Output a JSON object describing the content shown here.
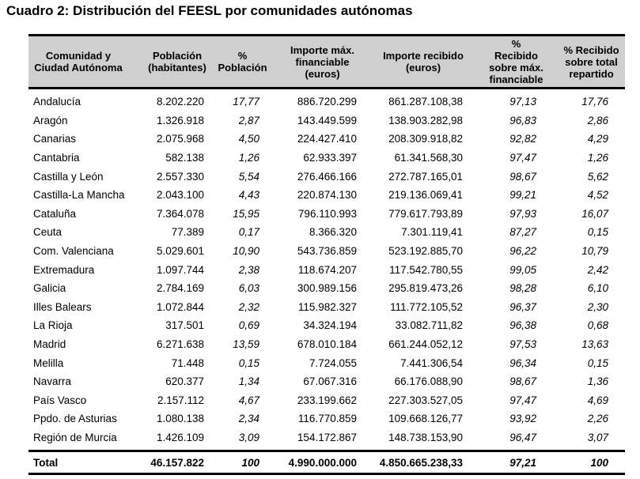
{
  "title": "Cuadro 2:  Distribución del FEESL por comunidades autónomas",
  "headers": [
    "Comunidad y Ciudad Autónoma",
    "Población (habitantes)",
    "% Población",
    "Importe máx. financiable (euros)",
    "Importe recibido (euros)",
    "% Recibido sobre máx. financiable",
    "% Recibido sobre total repartido"
  ],
  "rows": [
    [
      "Andalucía",
      "8.202.220",
      "17,77",
      "886.720.299",
      "861.287.108,38",
      "97,13",
      "17,76"
    ],
    [
      "Aragón",
      "1.326.918",
      "2,87",
      "143.449.599",
      "138.903.282,98",
      "96,83",
      "2,86"
    ],
    [
      "Canarias",
      "2.075.968",
      "4,50",
      "224.427.410",
      "208.309.918,82",
      "92,82",
      "4,29"
    ],
    [
      "Cantabria",
      "582.138",
      "1,26",
      "62.933.397",
      "61.341.568,30",
      "97,47",
      "1,26"
    ],
    [
      "Castilla y León",
      "2.557.330",
      "5,54",
      "276.466.166",
      "272.787.165,01",
      "98,67",
      "5,62"
    ],
    [
      "Castilla-La Mancha",
      "2.043.100",
      "4,43",
      "220.874.130",
      "219.136.069,41",
      "99,21",
      "4,52"
    ],
    [
      "Cataluña",
      "7.364.078",
      "15,95",
      "796.110.993",
      "779.617.793,89",
      "97,93",
      "16,07"
    ],
    [
      "Ceuta",
      "77.389",
      "0,17",
      "8.366.320",
      "7.301.119,41",
      "87,27",
      "0,15"
    ],
    [
      "Com. Valenciana",
      "5.029.601",
      "10,90",
      "543.736.859",
      "523.192.885,70",
      "96,22",
      "10,79"
    ],
    [
      "Extremadura",
      "1.097.744",
      "2,38",
      "118.674.207",
      "117.542.780,55",
      "99,05",
      "2,42"
    ],
    [
      "Galicia",
      "2.784.169",
      "6,03",
      "300.989.156",
      "295.819.473,26",
      "98,28",
      "6,10"
    ],
    [
      "Illes Balears",
      "1.072.844",
      "2,32",
      "115.982.327",
      "111.772.105,52",
      "96,37",
      "2,30"
    ],
    [
      "La Rioja",
      "317.501",
      "0,69",
      "34.324.194",
      "33.082.711,82",
      "96,38",
      "0,68"
    ],
    [
      "Madrid",
      "6.271.638",
      "13,59",
      "678.010.184",
      "661.244.052,12",
      "97,53",
      "13,63"
    ],
    [
      "Melilla",
      "71.448",
      "0,15",
      "7.724.055",
      "7.441.306,54",
      "96,34",
      "0,15"
    ],
    [
      "Navarra",
      "620.377",
      "1,34",
      "67.067.316",
      "66.176.088,90",
      "98,67",
      "1,36"
    ],
    [
      "País Vasco",
      "2.157.112",
      "4,67",
      "233.199.662",
      "227.303.527,05",
      "97,47",
      "4,69"
    ],
    [
      "Ppdo. de Asturias",
      "1.080.138",
      "2,34",
      "116.770.859",
      "109.668.126,77",
      "93,92",
      "2,26"
    ],
    [
      "Región de Murcia",
      "1.426.109",
      "3,09",
      "154.172.867",
      "148.738.153,90",
      "96,47",
      "3,07"
    ]
  ],
  "total": [
    "Total",
    "46.157.822",
    "100",
    "4.990.000.000",
    "4.850.665.238,33",
    "97,21",
    "100"
  ]
}
